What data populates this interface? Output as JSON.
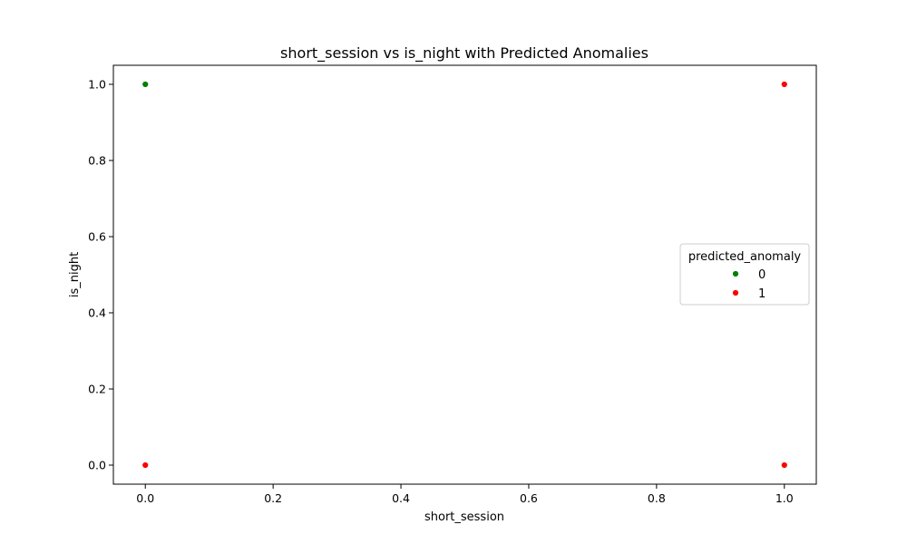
{
  "chart_data": {
    "type": "scatter",
    "title": "short_session vs is_night with Predicted Anomalies",
    "xlabel": "short_session",
    "ylabel": "is_night",
    "xlim": [
      -0.05,
      1.05
    ],
    "ylim": [
      -0.05,
      1.05
    ],
    "xticks": [
      0.0,
      0.2,
      0.4,
      0.6,
      0.8,
      1.0
    ],
    "yticks": [
      0.0,
      0.2,
      0.4,
      0.6,
      0.8,
      1.0
    ],
    "xtick_labels": [
      "0.0",
      "0.2",
      "0.4",
      "0.6",
      "0.8",
      "1.0"
    ],
    "ytick_labels": [
      "0.0",
      "0.2",
      "0.4",
      "0.6",
      "0.8",
      "1.0"
    ],
    "grid": false,
    "legend": {
      "title": "predicted_anomaly",
      "placement": "center-right"
    },
    "series": [
      {
        "name": "0",
        "color": "#008000",
        "points": [
          {
            "x": 0.0,
            "y": 1.0
          }
        ]
      },
      {
        "name": "1",
        "color": "#ff0000",
        "points": [
          {
            "x": 1.0,
            "y": 1.0
          },
          {
            "x": 0.0,
            "y": 0.0
          },
          {
            "x": 1.0,
            "y": 0.0
          }
        ]
      }
    ]
  }
}
